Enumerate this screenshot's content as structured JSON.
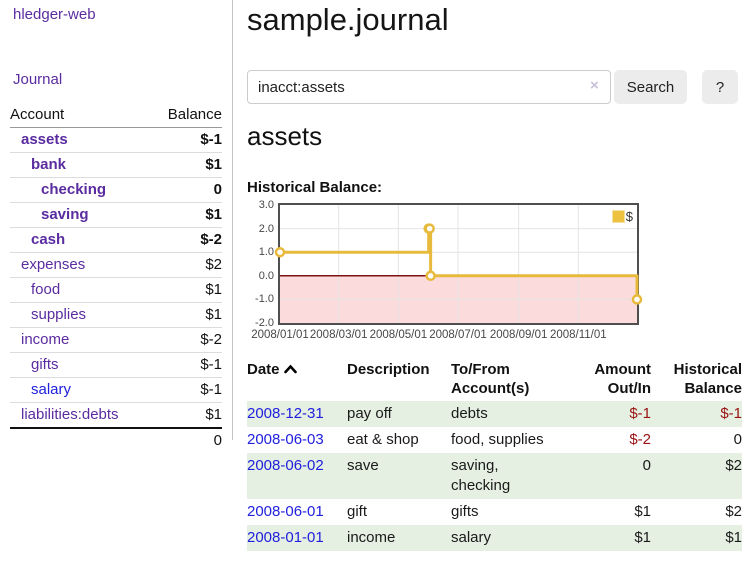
{
  "sidebar": {
    "app_title": "hledger-web",
    "journal_link": "Journal",
    "table": {
      "account_header": "Account",
      "balance_header": "Balance",
      "rows": [
        {
          "name": "assets",
          "depth": 1,
          "bold": true,
          "balance": "$-1",
          "negative": "strong"
        },
        {
          "name": "bank",
          "depth": 2,
          "bold": true,
          "balance": "$1"
        },
        {
          "name": "checking",
          "depth": 3,
          "bold": true,
          "balance": "0"
        },
        {
          "name": "saving",
          "depth": 3,
          "bold": true,
          "balance": "$1"
        },
        {
          "name": "cash",
          "depth": 2,
          "bold": true,
          "balance": "$-2",
          "negative": "strong"
        },
        {
          "name": "expenses",
          "depth": 1,
          "bold": false,
          "balance": "$2"
        },
        {
          "name": "food",
          "depth": 2,
          "bold": false,
          "balance": "$1"
        },
        {
          "name": "supplies",
          "depth": 2,
          "bold": false,
          "balance": "$1"
        },
        {
          "name": "income",
          "depth": 1,
          "bold": false,
          "balance": "$-2",
          "negative": "faded"
        },
        {
          "name": "gifts",
          "depth": 2,
          "bold": false,
          "balance": "$-1",
          "negative": "faded"
        },
        {
          "name": "salary",
          "depth": 2,
          "bold": false,
          "balance": "$-1",
          "negative": "faded",
          "link_variant": "unvisited"
        },
        {
          "name": "liabilities:debts",
          "depth": 1,
          "bold": false,
          "balance": "$1"
        }
      ],
      "total": "0"
    }
  },
  "header": {
    "title": "sample.journal"
  },
  "search": {
    "value": "inacct:assets",
    "clear_icon": "×",
    "button_label": "Search",
    "help_label": "?"
  },
  "account_page": {
    "title": "assets",
    "chart_label": "Historical Balance:"
  },
  "chart_data": {
    "type": "line",
    "style": "step",
    "title": "Historical Balance",
    "xlim_days": [
      0,
      365
    ],
    "ylim": [
      -2,
      3
    ],
    "grid": true,
    "legend": {
      "label": "$",
      "position": "top-right",
      "swatch_color": "#edc240"
    },
    "line_color": "#e8ba3c",
    "negative_fill": "#fbdbdb",
    "zero_line_color": "#7d1212",
    "series": [
      {
        "name": "$",
        "points": [
          {
            "date": "2008/01/01",
            "day": 0,
            "value": 1
          },
          {
            "date": "2008/06/01",
            "day": 152,
            "value": 2
          },
          {
            "date": "2008/06/02",
            "day": 153,
            "value": 2
          },
          {
            "date": "2008/06/03",
            "day": 154,
            "value": 0
          },
          {
            "date": "2008/12/31",
            "day": 365,
            "value": -1
          }
        ]
      }
    ],
    "x_ticks": [
      {
        "label": "2008/01/01",
        "day": 0
      },
      {
        "label": "2008/03/01",
        "day": 60
      },
      {
        "label": "2008/05/01",
        "day": 121
      },
      {
        "label": "2008/07/01",
        "day": 182
      },
      {
        "label": "2008/09/01",
        "day": 244
      },
      {
        "label": "2008/11/01",
        "day": 305
      }
    ],
    "y_ticks": [
      {
        "label": "3.0",
        "value": 3
      },
      {
        "label": "2.0",
        "value": 2
      },
      {
        "label": "1.0",
        "value": 1
      },
      {
        "label": "0.0",
        "value": 0
      },
      {
        "label": "-1.0",
        "value": -1
      },
      {
        "label": "-2.0",
        "value": -2
      }
    ]
  },
  "register": {
    "columns": [
      {
        "lines": [
          "Date"
        ],
        "sortable": true,
        "align": "left"
      },
      {
        "lines": [
          "Description"
        ],
        "align": "left"
      },
      {
        "lines": [
          "To/From",
          "Account(s)"
        ],
        "align": "left"
      },
      {
        "lines": [
          "Amount",
          "Out/In"
        ],
        "align": "right"
      },
      {
        "lines": [
          "Historical",
          "Balance"
        ],
        "align": "right"
      }
    ],
    "rows": [
      {
        "date": "2008-12-31",
        "description": "pay off",
        "accounts": "debts",
        "amount": "$-1",
        "amount_negative": true,
        "balance": "$-1",
        "balance_negative": true
      },
      {
        "date": "2008-06-03",
        "description": "eat & shop",
        "accounts": "food, supplies",
        "amount": "$-2",
        "amount_negative": true,
        "balance": "0",
        "balance_negative": false
      },
      {
        "date": "2008-06-02",
        "description": "save",
        "accounts": "saving, checking",
        "amount": "0",
        "amount_negative": false,
        "balance": "$2",
        "balance_negative": false
      },
      {
        "date": "2008-06-01",
        "description": "gift",
        "accounts": "gifts",
        "amount": "$1",
        "amount_negative": false,
        "balance": "$2",
        "balance_negative": false
      },
      {
        "date": "2008-01-01",
        "description": "income",
        "accounts": "salary",
        "amount": "$1",
        "amount_negative": false,
        "balance": "$1",
        "balance_negative": false
      }
    ]
  }
}
